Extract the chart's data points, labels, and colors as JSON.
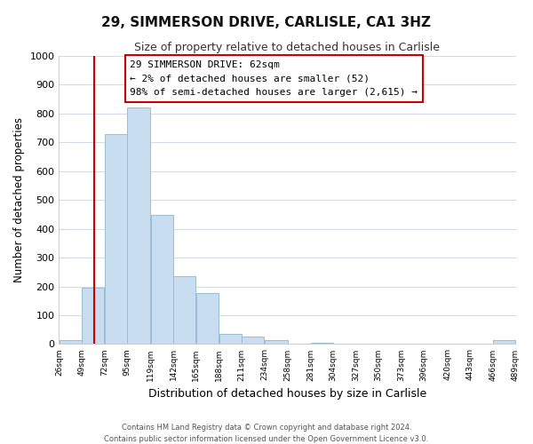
{
  "title": "29, SIMMERSON DRIVE, CARLISLE, CA1 3HZ",
  "subtitle": "Size of property relative to detached houses in Carlisle",
  "xlabel": "Distribution of detached houses by size in Carlisle",
  "ylabel": "Number of detached properties",
  "bar_edges": [
    26,
    49,
    72,
    95,
    119,
    142,
    165,
    188,
    211,
    234,
    258,
    281,
    304,
    327,
    350,
    373,
    396,
    420,
    443,
    466,
    489
  ],
  "bar_heights": [
    13,
    197,
    730,
    820,
    447,
    237,
    178,
    35,
    25,
    13,
    0,
    5,
    0,
    0,
    0,
    0,
    0,
    0,
    0,
    13
  ],
  "bar_color": "#c8ddef",
  "bar_edgecolor": "#9abdd4",
  "property_line_x": 62,
  "property_line_color": "#cc0000",
  "ylim": [
    0,
    1000
  ],
  "yticks": [
    0,
    100,
    200,
    300,
    400,
    500,
    600,
    700,
    800,
    900,
    1000
  ],
  "annotation_title": "29 SIMMERSON DRIVE: 62sqm",
  "annotation_line1": "← 2% of detached houses are smaller (52)",
  "annotation_line2": "98% of semi-detached houses are larger (2,615) →",
  "annotation_box_color": "#ffffff",
  "annotation_box_edgecolor": "#cc0000",
  "footer_line1": "Contains HM Land Registry data © Crown copyright and database right 2024.",
  "footer_line2": "Contains public sector information licensed under the Open Government Licence v3.0.",
  "tick_labels": [
    "26sqm",
    "49sqm",
    "72sqm",
    "95sqm",
    "119sqm",
    "142sqm",
    "165sqm",
    "188sqm",
    "211sqm",
    "234sqm",
    "258sqm",
    "281sqm",
    "304sqm",
    "327sqm",
    "350sqm",
    "373sqm",
    "396sqm",
    "420sqm",
    "443sqm",
    "466sqm",
    "489sqm"
  ],
  "background_color": "#ffffff",
  "grid_color": "#d0dce8"
}
